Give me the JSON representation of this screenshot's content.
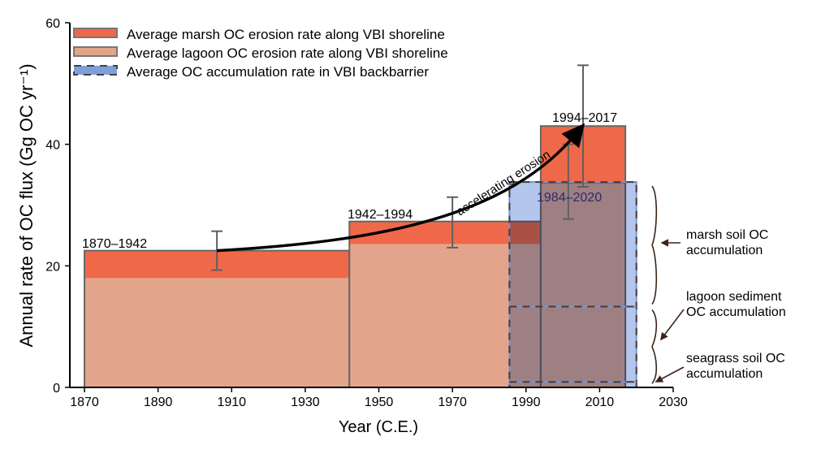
{
  "chart_data": {
    "type": "bar",
    "xlabel": "Year (C.E.)",
    "ylabel": "Annual rate of OC flux (Gg OC yr⁻¹)",
    "xlim": [
      1870,
      2030
    ],
    "ylim": [
      0,
      60
    ],
    "xticks": [
      1870,
      1890,
      1910,
      1930,
      1950,
      1970,
      1990,
      2010,
      2030
    ],
    "yticks": [
      0,
      20,
      40,
      60
    ],
    "grid": false,
    "legend_position": "top-left",
    "legend": [
      {
        "label": "Average marsh OC erosion rate along VBI shoreline",
        "color": "#f0684a"
      },
      {
        "label": "Average lagoon OC erosion rate along VBI shoreline",
        "color": "#e2a58c"
      },
      {
        "label": "Average OC accumulation rate in VBI backbarrier",
        "color": "#7f9fdc"
      }
    ],
    "erosion_periods": [
      {
        "label": "1870–1942",
        "start": 1870,
        "end": 1942,
        "total": 22.5,
        "lagoon": 18.0,
        "error_x": 1906,
        "error_low": 19.3,
        "error_high": 25.7
      },
      {
        "label": "1942–1994",
        "start": 1942,
        "end": 1994,
        "total": 27.3,
        "lagoon": 23.6,
        "error_x": 1970,
        "error_low": 23.0,
        "error_high": 31.3
      },
      {
        "label": "1994–2017",
        "start": 1994,
        "end": 2017,
        "total": 43.0,
        "lagoon": 33.5,
        "error_x": 2005.5,
        "error_low": 33.0,
        "error_high": 53.0
      }
    ],
    "accumulation": {
      "label": "1984–2020",
      "start": 1985.5,
      "end": 2020,
      "total": 33.8,
      "error_x": 2001.5,
      "error_low": 27.7,
      "error_high": 40.0,
      "components": [
        {
          "label": "seagrass soil OC accumulation",
          "from": 0,
          "to": 0.9
        },
        {
          "label": "lagoon sediment OC accumulation",
          "from": 0.9,
          "to": 13.3
        },
        {
          "label": "marsh soil OC accumulation",
          "from": 13.3,
          "to": 33.8
        }
      ]
    },
    "annotations": [
      {
        "text": "accelerating erosion"
      }
    ]
  }
}
